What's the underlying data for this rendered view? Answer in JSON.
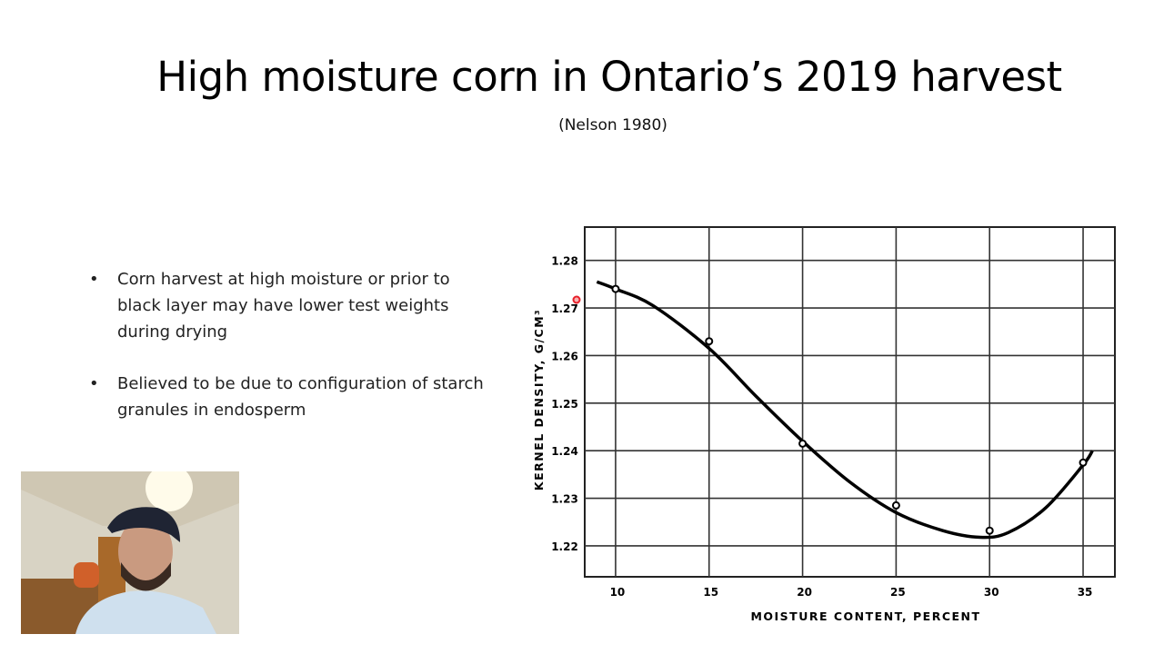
{
  "slide": {
    "title": "High moisture corn in Ontario’s 2019 harvest",
    "subtitle": "(Nelson 1980)",
    "bullets": [
      "Corn harvest at high moisture or prior to black layer may have lower test weights during drying",
      "Believed to be due to configuration of starch granules in endosperm"
    ]
  },
  "webcam": {
    "icon": "presenter-webcam-video"
  },
  "pointer": {
    "color": "#e8202a"
  },
  "chart_data": {
    "type": "scatter",
    "title": "",
    "xlabel": "MOISTURE CONTENT, PERCENT",
    "ylabel": "KERNEL DENSITY, G/CM³",
    "xlim": [
      8.35,
      36.7
    ],
    "ylim": [
      1.2135,
      1.287
    ],
    "x_ticks": [
      "10",
      "15",
      "20",
      "25",
      "30",
      "35"
    ],
    "y_ticks": [
      "1.28",
      "1.27",
      "1.26",
      "1.25",
      "1.24",
      "1.23",
      "1.22"
    ],
    "grid": true,
    "series": [
      {
        "type": "scatter",
        "marker": "open-circle",
        "x": [
          10,
          15,
          20,
          25,
          30,
          35
        ],
        "y": [
          1.274,
          1.263,
          1.2415,
          1.2285,
          1.2232,
          1.2375
        ]
      },
      {
        "type": "line",
        "style": "fitted-curve",
        "x": [
          9.0,
          10,
          12,
          15,
          17.5,
          20,
          22.5,
          25,
          27.5,
          29.5,
          31,
          33,
          35,
          35.5
        ],
        "y": [
          1.2755,
          1.274,
          1.2705,
          1.2615,
          1.2515,
          1.242,
          1.2335,
          1.227,
          1.2232,
          1.2218,
          1.2228,
          1.228,
          1.237,
          1.24
        ]
      }
    ]
  }
}
